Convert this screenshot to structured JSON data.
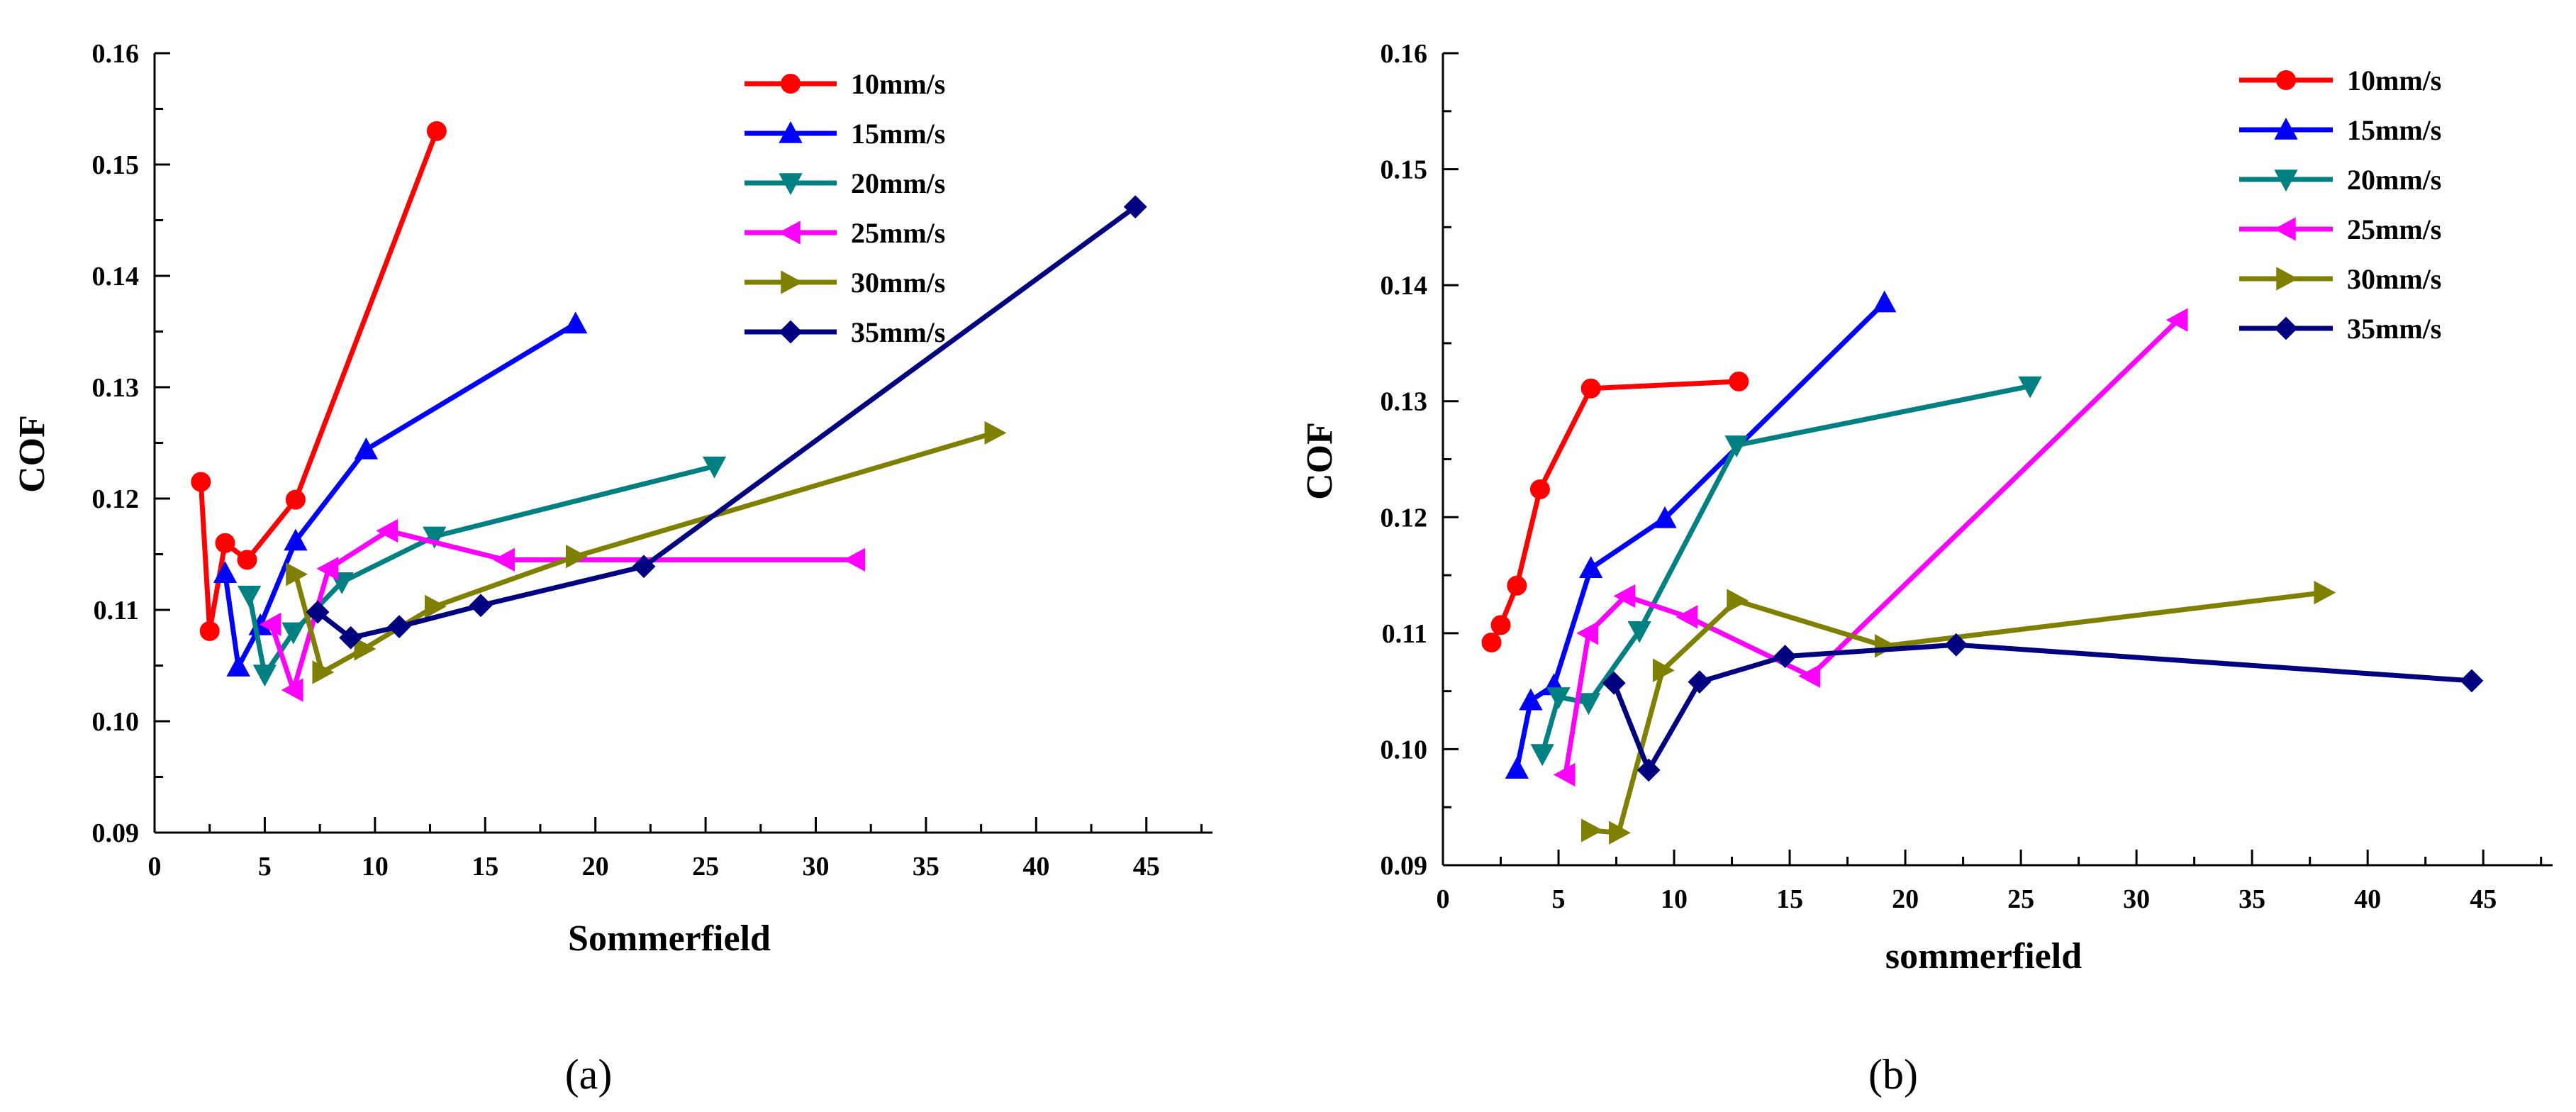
{
  "chart_data": [
    {
      "type": "line",
      "panel": "a",
      "caption": "(a)",
      "xlabel": "Sommerfield",
      "ylabel": "COF",
      "xlim": [
        0,
        48
      ],
      "ylim": [
        0.09,
        0.16
      ],
      "xticks": [
        0,
        5,
        10,
        15,
        20,
        25,
        30,
        35,
        40,
        45
      ],
      "xtick_labels": [
        "0",
        "5",
        "10",
        "15",
        "20",
        "25",
        "30",
        "35",
        "40",
        "45"
      ],
      "yticks": [
        0.09,
        0.1,
        0.11,
        0.12,
        0.13,
        0.14,
        0.15,
        0.16
      ],
      "ytick_labels": [
        "0.09",
        "0.10",
        "0.11",
        "0.12",
        "0.13",
        "0.14",
        "0.15",
        "0.16"
      ],
      "legend_position": "top-right",
      "series": [
        {
          "name": "10mm/s",
          "color": "#ff0000",
          "marker": "circle",
          "x": [
            2.1,
            2.5,
            3.2,
            4.2,
            6.4,
            12.8
          ],
          "y": [
            0.1215,
            0.1081,
            0.116,
            0.1145,
            0.1199,
            0.153
          ]
        },
        {
          "name": "15mm/s",
          "color": "#0000ff",
          "marker": "triangle-up",
          "x": [
            3.2,
            3.8,
            4.8,
            6.4,
            9.6,
            19.1
          ],
          "y": [
            0.1133,
            0.1049,
            0.1086,
            0.1162,
            0.1244,
            0.1357
          ]
        },
        {
          "name": "20mm/s",
          "color": "#008080",
          "marker": "triangle-down",
          "x": [
            4.3,
            5.0,
            6.3,
            8.5,
            12.7,
            25.4
          ],
          "y": [
            0.1113,
            0.1042,
            0.108,
            0.1125,
            0.1166,
            0.1229
          ]
        },
        {
          "name": "25mm/s",
          "color": "#ff00ff",
          "marker": "triangle-left",
          "x": [
            5.3,
            6.3,
            7.9,
            10.6,
            15.9,
            31.8
          ],
          "y": [
            0.1087,
            0.1028,
            0.1137,
            0.1171,
            0.1145,
            0.1145
          ]
        },
        {
          "name": "30mm/s",
          "color": "#808000",
          "marker": "triangle-right",
          "x": [
            6.4,
            7.6,
            9.5,
            12.7,
            19.1,
            38.1
          ],
          "y": [
            0.1132,
            0.1044,
            0.1065,
            0.1103,
            0.1148,
            0.1259
          ]
        },
        {
          "name": "35mm/s",
          "color": "#000080",
          "marker": "diamond",
          "x": [
            7.4,
            8.9,
            11.1,
            14.8,
            22.2,
            44.5
          ],
          "y": [
            0.1098,
            0.1075,
            0.1085,
            0.1104,
            0.1139,
            0.1462
          ]
        }
      ]
    },
    {
      "type": "line",
      "panel": "b",
      "caption": "(b)",
      "xlabel": "sommerfield",
      "ylabel": "COF",
      "xlim": [
        0,
        48
      ],
      "ylim": [
        0.09,
        0.16
      ],
      "xticks": [
        0,
        5,
        10,
        15,
        20,
        25,
        30,
        35,
        40,
        45
      ],
      "xtick_labels": [
        "0",
        "5",
        "10",
        "15",
        "20",
        "25",
        "30",
        "35",
        "40",
        "45"
      ],
      "yticks": [
        0.09,
        0.1,
        0.11,
        0.12,
        0.13,
        0.14,
        0.15,
        0.16
      ],
      "ytick_labels": [
        "0.09",
        "0.10",
        "0.11",
        "0.12",
        "0.13",
        "0.14",
        "0.15",
        "0.16"
      ],
      "legend_position": "top-right",
      "series": [
        {
          "name": "10mm/s",
          "color": "#ff0000",
          "marker": "circle",
          "x": [
            2.1,
            2.5,
            3.2,
            4.2,
            6.4,
            12.8
          ],
          "y": [
            0.1092,
            0.1107,
            0.1141,
            0.1224,
            0.1311,
            0.1317
          ]
        },
        {
          "name": "15mm/s",
          "color": "#0000ff",
          "marker": "triangle-up",
          "x": [
            3.2,
            3.8,
            4.8,
            6.4,
            9.6,
            19.1
          ],
          "y": [
            0.0983,
            0.1042,
            0.1055,
            0.1156,
            0.1199,
            0.1385
          ]
        },
        {
          "name": "20mm/s",
          "color": "#008080",
          "marker": "triangle-down",
          "x": [
            4.3,
            5.0,
            6.3,
            8.5,
            12.7,
            25.4
          ],
          "y": [
            0.0996,
            0.1045,
            0.104,
            0.1102,
            0.1262,
            0.1313
          ]
        },
        {
          "name": "25mm/s",
          "color": "#ff00ff",
          "marker": "triangle-left",
          "x": [
            5.3,
            6.3,
            7.9,
            10.6,
            15.9,
            31.8
          ],
          "y": [
            0.0978,
            0.11,
            0.1132,
            0.1114,
            0.1063,
            0.137
          ]
        },
        {
          "name": "30mm/s",
          "color": "#808000",
          "marker": "triangle-right",
          "x": [
            6.4,
            7.6,
            9.5,
            12.7,
            19.1,
            38.1
          ],
          "y": [
            0.093,
            0.0928,
            0.1068,
            0.1128,
            0.1089,
            0.1135
          ]
        },
        {
          "name": "35mm/s",
          "color": "#000080",
          "marker": "diamond",
          "x": [
            7.4,
            8.9,
            11.1,
            14.8,
            22.2,
            44.5
          ],
          "y": [
            0.1057,
            0.0982,
            0.1058,
            0.108,
            0.109,
            0.1059
          ]
        }
      ]
    }
  ]
}
